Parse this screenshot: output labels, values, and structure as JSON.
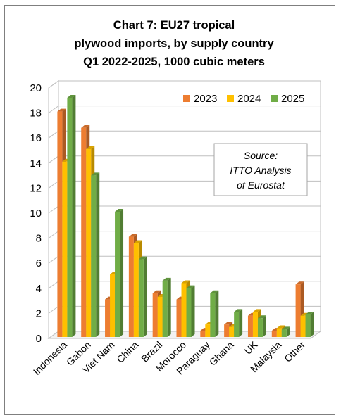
{
  "chart_data": {
    "type": "bar",
    "title_lines": [
      "Chart 7: EU27 tropical",
      "plywood imports, by supply country",
      "Q1 2022-2025, 1000 cubic meters"
    ],
    "categories": [
      "Indonesia",
      "Gabon",
      "Viet Nam",
      "China",
      "Brazil",
      "Morocco",
      "Paraguay",
      "Ghana",
      "UK",
      "Malaysia",
      "Other"
    ],
    "series": [
      {
        "name": "2023",
        "color": "#ED7D31",
        "values": [
          18.0,
          16.7,
          3.0,
          8.0,
          3.5,
          3.0,
          0.5,
          1.0,
          1.7,
          0.5,
          4.2
        ]
      },
      {
        "name": "2024",
        "color": "#FFC000",
        "values": [
          14.0,
          15.0,
          5.0,
          7.5,
          3.2,
          4.3,
          1.0,
          0.8,
          2.0,
          0.7,
          1.7
        ]
      },
      {
        "name": "2025",
        "color": "#70AD47",
        "values": [
          19.1,
          12.9,
          10.0,
          6.2,
          4.5,
          3.9,
          3.5,
          2.0,
          1.5,
          0.6,
          1.8
        ]
      }
    ],
    "yticks": [
      "0",
      "2",
      "4",
      "6",
      "8",
      "10",
      "12",
      "14",
      "16",
      "18",
      "20"
    ],
    "ylim": [
      0,
      20
    ],
    "grid": true,
    "legend_position": "top-right",
    "annotation_lines": [
      "Source:",
      "ITTO Analysis",
      "of Eurostat"
    ]
  }
}
